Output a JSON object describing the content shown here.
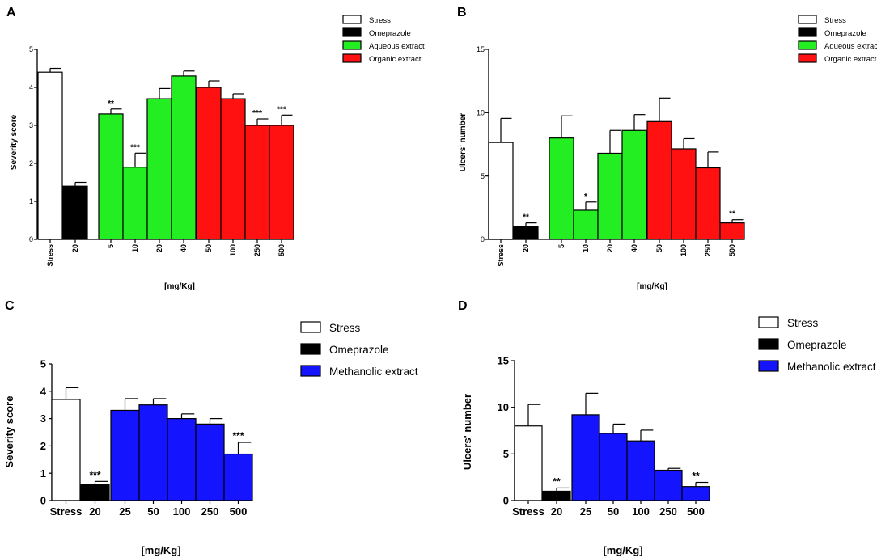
{
  "colors": {
    "stress": "#ffffff",
    "omeprazole": "#000000",
    "aqueous": "#22ee22",
    "organic": "#ff1111",
    "methanolic": "#1414ff"
  },
  "chart_data": [
    {
      "panel": "A",
      "type": "bar",
      "ylabel": "Severity score",
      "xlabel": "[mg/Kg]",
      "ylim": [
        0,
        5
      ],
      "yticks": [
        "0",
        "1",
        "2",
        "3",
        "4",
        "5"
      ],
      "legend": [
        {
          "label": "Stress",
          "series": "stress"
        },
        {
          "label": "Omeprazole",
          "series": "omeprazole"
        },
        {
          "label": "Aqueous extract",
          "series": "aqueous"
        },
        {
          "label": "Organic extract",
          "series": "organic"
        }
      ],
      "bars": [
        {
          "category": "Stress",
          "series": "stress",
          "value": 4.4,
          "error": 0.1,
          "sig": ""
        },
        {
          "category": "20",
          "series": "omeprazole",
          "value": 1.4,
          "error": 0.1,
          "sig": ""
        },
        {
          "category": "5",
          "series": "aqueous",
          "value": 3.3,
          "error": 0.13,
          "sig": "**"
        },
        {
          "category": "10",
          "series": "aqueous",
          "value": 1.9,
          "error": 0.37,
          "sig": "***"
        },
        {
          "category": "20",
          "series": "aqueous",
          "value": 3.7,
          "error": 0.27,
          "sig": ""
        },
        {
          "category": "40",
          "series": "aqueous",
          "value": 4.3,
          "error": 0.13,
          "sig": ""
        },
        {
          "category": "50",
          "series": "organic",
          "value": 4.0,
          "error": 0.17,
          "sig": ""
        },
        {
          "category": "100",
          "series": "organic",
          "value": 3.7,
          "error": 0.13,
          "sig": ""
        },
        {
          "category": "250",
          "series": "organic",
          "value": 3.0,
          "error": 0.17,
          "sig": "***"
        },
        {
          "category": "500",
          "series": "organic",
          "value": 3.0,
          "error": 0.27,
          "sig": "***"
        }
      ]
    },
    {
      "panel": "B",
      "type": "bar",
      "ylabel": "Ulcers' number",
      "xlabel": "[mg/Kg]",
      "ylim": [
        0,
        15
      ],
      "yticks": [
        "0",
        "5",
        "10",
        "15"
      ],
      "legend": [
        {
          "label": "Stress",
          "series": "stress"
        },
        {
          "label": "Omeprazole",
          "series": "omeprazole"
        },
        {
          "label": "Aqueous extract",
          "series": "aqueous"
        },
        {
          "label": "Organic extract",
          "series": "organic"
        }
      ],
      "bars": [
        {
          "category": "Stress",
          "series": "stress",
          "value": 7.65,
          "error": 1.9,
          "sig": ""
        },
        {
          "category": "20",
          "series": "omeprazole",
          "value": 1.0,
          "error": 0.3,
          "sig": "**"
        },
        {
          "category": "5",
          "series": "aqueous",
          "value": 8.0,
          "error": 1.75,
          "sig": ""
        },
        {
          "category": "10",
          "series": "aqueous",
          "value": 2.3,
          "error": 0.65,
          "sig": "*"
        },
        {
          "category": "20",
          "series": "aqueous",
          "value": 6.8,
          "error": 1.8,
          "sig": ""
        },
        {
          "category": "40",
          "series": "aqueous",
          "value": 8.6,
          "error": 1.25,
          "sig": ""
        },
        {
          "category": "50",
          "series": "organic",
          "value": 9.3,
          "error": 1.85,
          "sig": ""
        },
        {
          "category": "100",
          "series": "organic",
          "value": 7.15,
          "error": 0.8,
          "sig": ""
        },
        {
          "category": "250",
          "series": "organic",
          "value": 5.65,
          "error": 1.25,
          "sig": ""
        },
        {
          "category": "500",
          "series": "organic",
          "value": 1.3,
          "error": 0.25,
          "sig": "**"
        }
      ]
    },
    {
      "panel": "C",
      "type": "bar",
      "ylabel": "Severity score",
      "xlabel": "[mg/Kg]",
      "ylim": [
        0,
        5
      ],
      "yticks": [
        "0",
        "1",
        "2",
        "3",
        "4",
        "5"
      ],
      "legend": [
        {
          "label": "Stress",
          "series": "stress"
        },
        {
          "label": "Omeprazole",
          "series": "omeprazole"
        },
        {
          "label": "Methanolic extract",
          "series": "methanolic"
        }
      ],
      "bars": [
        {
          "category": "Stress",
          "series": "stress",
          "value": 3.7,
          "error": 0.43,
          "sig": ""
        },
        {
          "category": "20",
          "series": "omeprazole",
          "value": 0.6,
          "error": 0.1,
          "sig": "***"
        },
        {
          "category": "25",
          "series": "methanolic",
          "value": 3.3,
          "error": 0.43,
          "sig": ""
        },
        {
          "category": "50",
          "series": "methanolic",
          "value": 3.5,
          "error": 0.23,
          "sig": ""
        },
        {
          "category": "100",
          "series": "methanolic",
          "value": 3.0,
          "error": 0.17,
          "sig": ""
        },
        {
          "category": "250",
          "series": "methanolic",
          "value": 2.8,
          "error": 0.2,
          "sig": ""
        },
        {
          "category": "500",
          "series": "methanolic",
          "value": 1.7,
          "error": 0.43,
          "sig": "***"
        }
      ]
    },
    {
      "panel": "D",
      "type": "bar",
      "ylabel": "Ulcers' number",
      "xlabel": "[mg/Kg]",
      "ylim": [
        0,
        15
      ],
      "yticks": [
        "0",
        "5",
        "10",
        "15"
      ],
      "legend": [
        {
          "label": "Stress",
          "series": "stress"
        },
        {
          "label": "Omeprazole",
          "series": "omeprazole"
        },
        {
          "label": "Methanolic extract",
          "series": "methanolic"
        }
      ],
      "bars": [
        {
          "category": "Stress",
          "series": "stress",
          "value": 8.0,
          "error": 2.3,
          "sig": ""
        },
        {
          "category": "20",
          "series": "omeprazole",
          "value": 1.0,
          "error": 0.35,
          "sig": "**"
        },
        {
          "category": "25",
          "series": "methanolic",
          "value": 9.2,
          "error": 2.3,
          "sig": ""
        },
        {
          "category": "50",
          "series": "methanolic",
          "value": 7.2,
          "error": 1.0,
          "sig": ""
        },
        {
          "category": "100",
          "series": "methanolic",
          "value": 6.4,
          "error": 1.15,
          "sig": ""
        },
        {
          "category": "250",
          "series": "methanolic",
          "value": 3.25,
          "error": 0.2,
          "sig": ""
        },
        {
          "category": "500",
          "series": "methanolic",
          "value": 1.5,
          "error": 0.45,
          "sig": "**"
        }
      ]
    }
  ]
}
